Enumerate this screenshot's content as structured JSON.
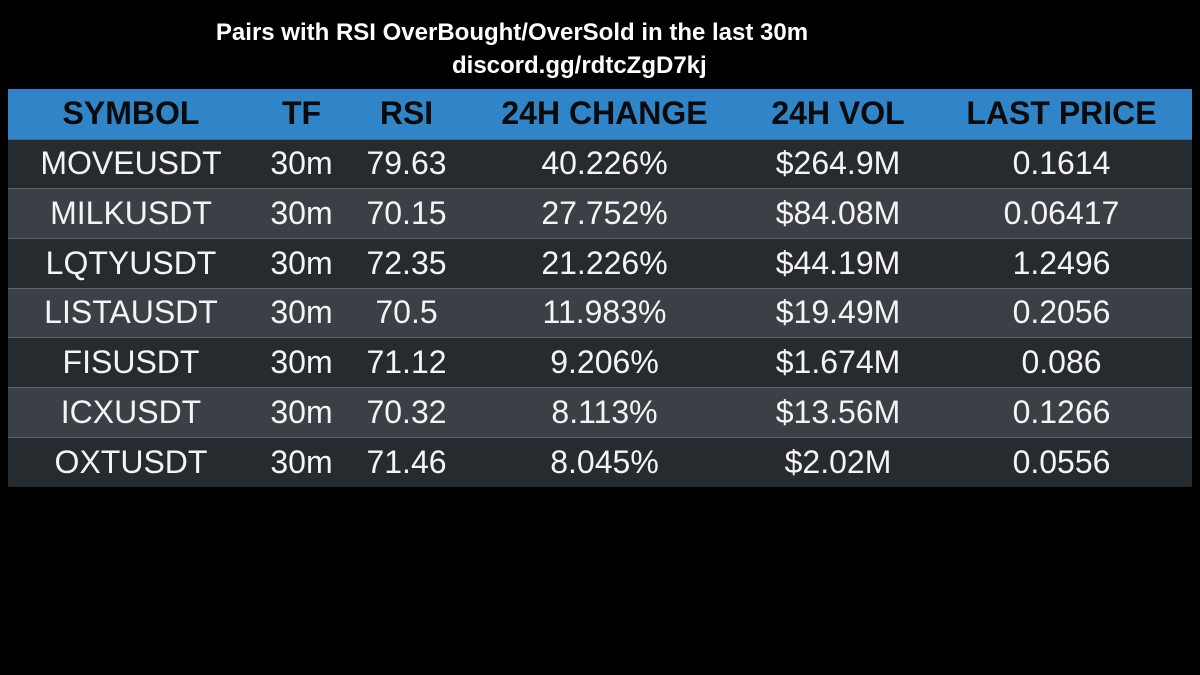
{
  "header": {
    "title": "Pairs with RSI OverBought/OverSold in the last 30m",
    "subtitle": "discord.gg/rdtcZgD7kj"
  },
  "table": {
    "columns": [
      "SYMBOL",
      "TF",
      "RSI",
      "24H CHANGE",
      "24H VOL",
      "LAST PRICE"
    ],
    "rows": [
      [
        "MOVEUSDT",
        "30m",
        "79.63",
        "40.226%",
        "$264.9M",
        "0.1614"
      ],
      [
        "MILKUSDT",
        "30m",
        "70.15",
        "27.752%",
        "$84.08M",
        "0.06417"
      ],
      [
        "LQTYUSDT",
        "30m",
        "72.35",
        "21.226%",
        "$44.19M",
        "1.2496"
      ],
      [
        "LISTAUSDT",
        "30m",
        "70.5",
        "11.983%",
        "$19.49M",
        "0.2056"
      ],
      [
        "FISUSDT",
        "30m",
        "71.12",
        "9.206%",
        "$1.674M",
        "0.086"
      ],
      [
        "ICXUSDT",
        "30m",
        "70.32",
        "8.113%",
        "$13.56M",
        "0.1266"
      ],
      [
        "OXTUSDT",
        "30m",
        "71.46",
        "8.045%",
        "$2.02M",
        "0.0556"
      ]
    ]
  },
  "colors": {
    "background": "#000000",
    "header_row": "#2f85c8",
    "row_dark": "#262b30",
    "row_light": "#3a4046",
    "text": "#f4f4f4",
    "header_text": "#0a0a0a"
  }
}
